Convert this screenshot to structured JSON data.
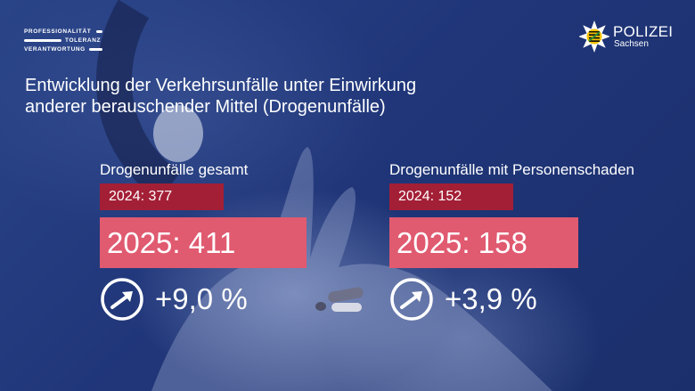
{
  "motto": {
    "line1": "PROFESSIONALITÄT",
    "line2": "TOLERANZ",
    "line3": "VERANTWORTUNG"
  },
  "logo": {
    "name": "POLIZEI",
    "region": "Sachsen",
    "emblem": "police-star-emblem"
  },
  "title": {
    "line1": "Entwicklung der Verkehrsunfälle unter Einwirkung",
    "line2": "anderer berauschender Mittel (Drogenunfälle)"
  },
  "stats": [
    {
      "label": "Drogenunfälle gesamt",
      "previous": "2024: 377",
      "current": "2025: 411",
      "change": "+9,0 %",
      "icon": "trend-up-icon"
    },
    {
      "label": "Drogenunfälle mit Personenschaden",
      "previous": "2024: 152",
      "current": "2025: 158",
      "change": "+3,9 %",
      "icon": "trend-up-icon"
    }
  ],
  "colors": {
    "background": "#22397a",
    "previous_box": "#a31f36",
    "current_box": "#e05a70",
    "text": "#ffffff"
  }
}
